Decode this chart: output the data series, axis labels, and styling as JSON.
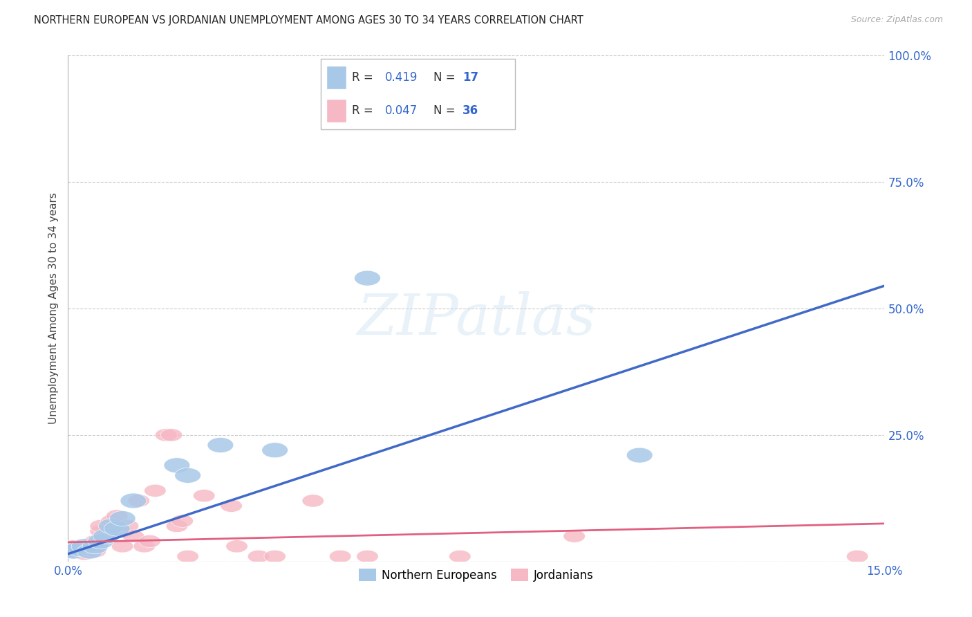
{
  "title": "NORTHERN EUROPEAN VS JORDANIAN UNEMPLOYMENT AMONG AGES 30 TO 34 YEARS CORRELATION CHART",
  "source": "Source: ZipAtlas.com",
  "ylabel": "Unemployment Among Ages 30 to 34 years",
  "xlim": [
    0,
    0.15
  ],
  "ylim": [
    0,
    1.0
  ],
  "xticks": [
    0.0,
    0.15
  ],
  "xticklabels": [
    "0.0%",
    "15.0%"
  ],
  "yticks_right": [
    0.25,
    0.5,
    0.75,
    1.0
  ],
  "ytick_right_labels": [
    "25.0%",
    "50.0%",
    "75.0%",
    "100.0%"
  ],
  "yticks_grid": [
    0.0,
    0.25,
    0.5,
    0.75,
    1.0
  ],
  "blue_color": "#A8C8E8",
  "pink_color": "#F5B8C4",
  "blue_line_color": "#4169C8",
  "pink_line_color": "#E06080",
  "legend_label_blue": "Northern Europeans",
  "legend_label_pink": "Jordanians",
  "blue_x": [
    0.001,
    0.002,
    0.003,
    0.004,
    0.005,
    0.006,
    0.007,
    0.008,
    0.009,
    0.01,
    0.012,
    0.02,
    0.022,
    0.028,
    0.038,
    0.055,
    0.105
  ],
  "blue_y": [
    0.02,
    0.025,
    0.03,
    0.02,
    0.03,
    0.04,
    0.05,
    0.07,
    0.065,
    0.085,
    0.12,
    0.19,
    0.17,
    0.23,
    0.22,
    0.56,
    0.21
  ],
  "pink_x": [
    0.001,
    0.001,
    0.002,
    0.003,
    0.004,
    0.005,
    0.005,
    0.006,
    0.006,
    0.007,
    0.008,
    0.009,
    0.01,
    0.01,
    0.011,
    0.012,
    0.013,
    0.014,
    0.015,
    0.016,
    0.018,
    0.019,
    0.02,
    0.021,
    0.022,
    0.025,
    0.03,
    0.031,
    0.035,
    0.038,
    0.045,
    0.05,
    0.055,
    0.072,
    0.093,
    0.145
  ],
  "pink_y": [
    0.02,
    0.03,
    0.025,
    0.015,
    0.03,
    0.02,
    0.04,
    0.06,
    0.07,
    0.05,
    0.08,
    0.09,
    0.06,
    0.03,
    0.07,
    0.05,
    0.12,
    0.03,
    0.04,
    0.14,
    0.25,
    0.25,
    0.07,
    0.08,
    0.01,
    0.13,
    0.11,
    0.03,
    0.01,
    0.01,
    0.12,
    0.01,
    0.01,
    0.01,
    0.05,
    0.01
  ],
  "blue_trend_x": [
    0.0,
    0.15
  ],
  "blue_trend_y": [
    0.015,
    0.545
  ],
  "pink_trend_x": [
    0.0,
    0.15
  ],
  "pink_trend_y": [
    0.038,
    0.075
  ],
  "background_color": "#ffffff",
  "grid_color": "#cccccc"
}
